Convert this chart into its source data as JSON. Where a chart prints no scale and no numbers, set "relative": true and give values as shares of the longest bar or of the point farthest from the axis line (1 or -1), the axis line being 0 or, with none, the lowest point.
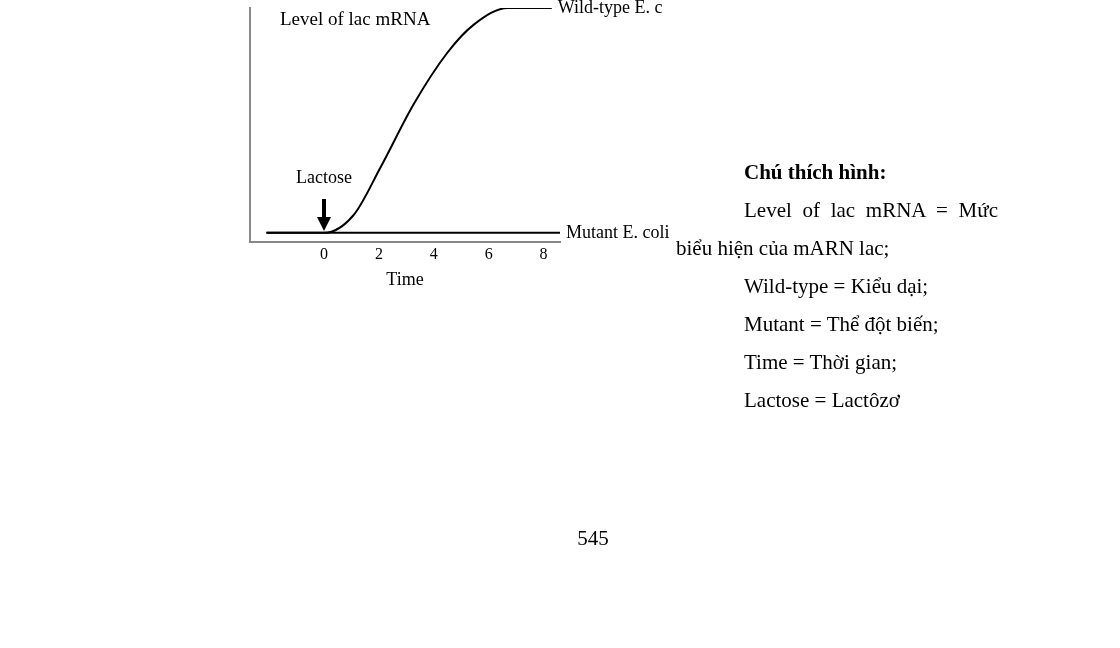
{
  "chart_data": {
    "type": "line",
    "relative": true,
    "ylabel": "Level of lac mRNA",
    "xlabel": "Time",
    "xlim": [
      -2.7,
      8.6
    ],
    "xticks": [
      0,
      2,
      4,
      6,
      8
    ],
    "grid": false,
    "legend": false,
    "marker": "none",
    "line_style": "solid",
    "series": [
      {
        "name": "Wild-type E. c",
        "color": "#000000",
        "x": [
          -2.1,
          0,
          1.07,
          2.06,
          3.27,
          4.5,
          5.47,
          6.7,
          8.3
        ],
        "values": [
          0.04,
          0.04,
          0.115,
          0.32,
          0.59,
          0.81,
          0.93,
          1,
          1
        ]
      },
      {
        "name": "Mutant E. coli",
        "color": "#000000",
        "x": [
          -2.1,
          8.6
        ],
        "values": [
          0.04,
          0.04
        ]
      }
    ],
    "annotations": [
      {
        "text": "Lactose",
        "x": 0,
        "y": 0.04
      },
      "Chú thích hình:",
      "Level of lac mRNA = Mức biểu hiện của mARN lac;",
      "Wild-type = Kiểu dại;",
      "Mutant = Thể đột biến;",
      "Time = Thời gian;",
      "Lactose = Lactôzơ",
      "545"
    ]
  }
}
